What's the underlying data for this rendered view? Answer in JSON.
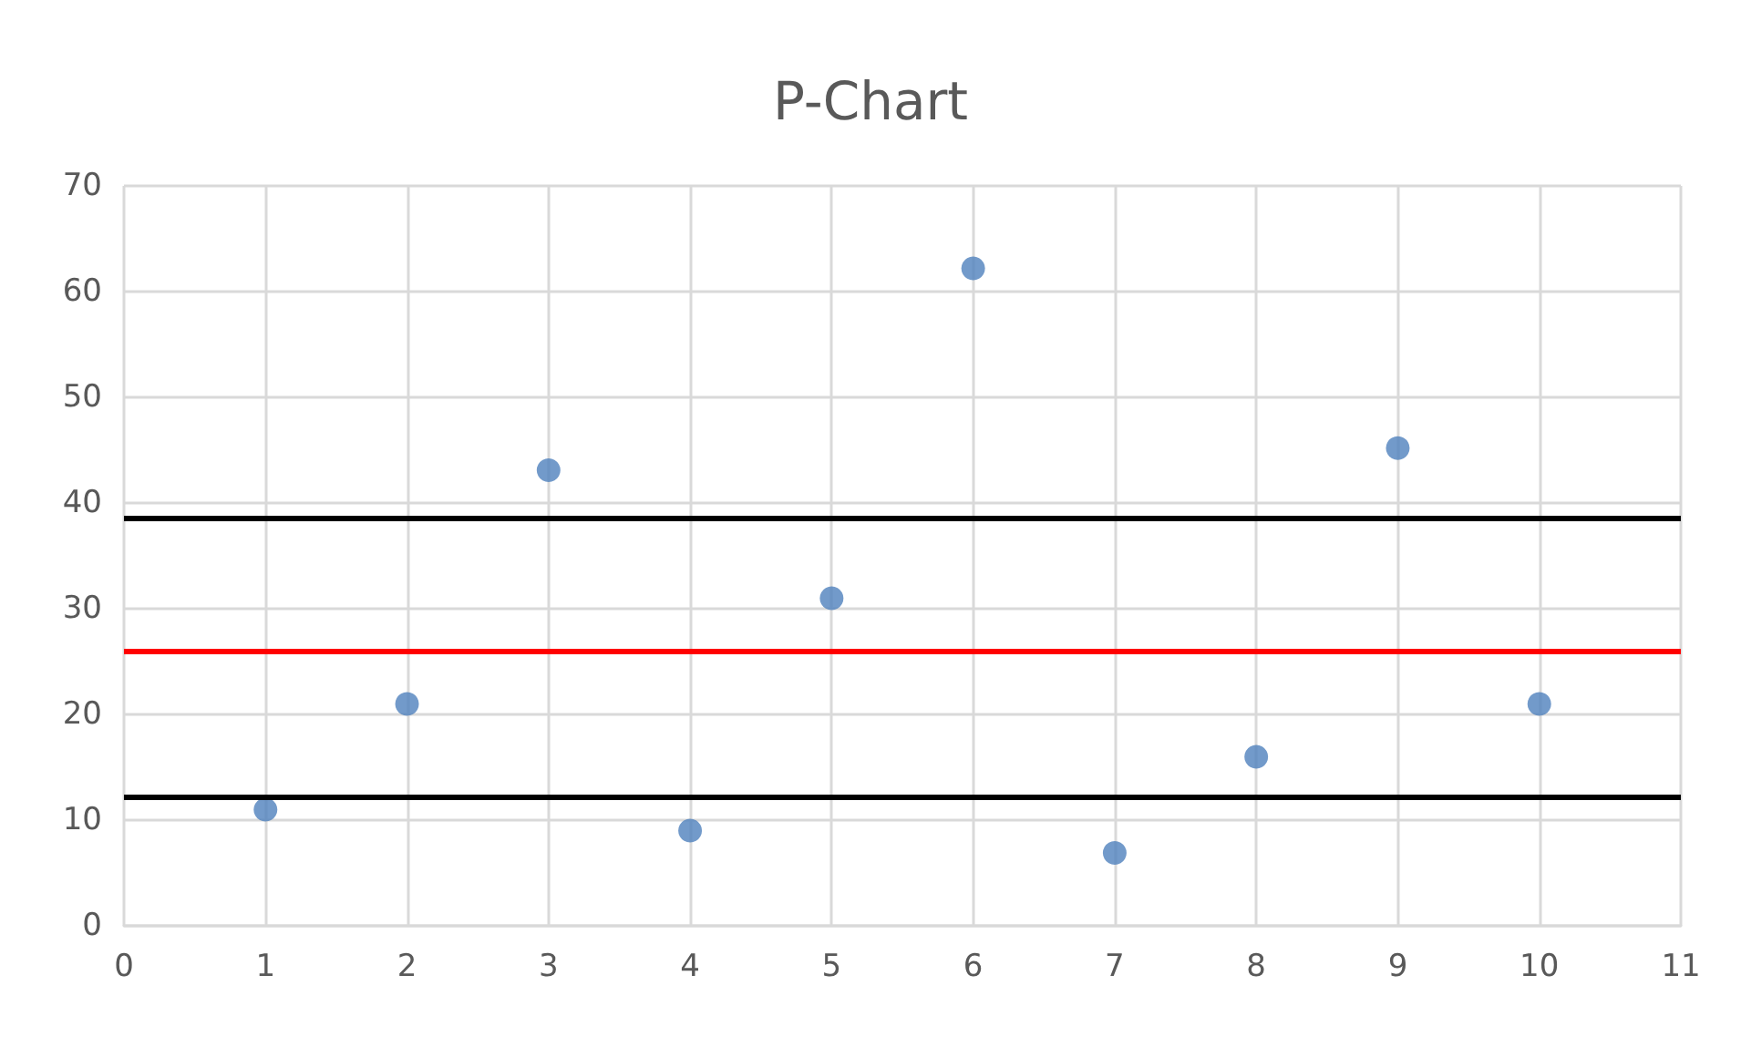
{
  "chart_data": {
    "type": "scatter",
    "title": "P-Chart",
    "x": [
      1,
      2,
      3,
      4,
      5,
      6,
      7,
      8,
      9,
      10
    ],
    "series": [
      {
        "color": "#4f81bd",
        "values": [
          11,
          21,
          43.1,
          9,
          31,
          62.2,
          6.9,
          16,
          45.2,
          21
        ]
      }
    ],
    "xlim": [
      0,
      11
    ],
    "xticks": [
      0,
      1,
      2,
      3,
      4,
      5,
      6,
      7,
      8,
      9,
      10,
      11
    ],
    "ylim": [
      0,
      70
    ],
    "yticks": [
      0,
      10,
      20,
      30,
      40,
      50,
      60,
      70
    ],
    "grid": true,
    "marker": "circle",
    "ref_lines": [
      {
        "axis": "y",
        "value": 38.6,
        "color": "#000000"
      },
      {
        "axis": "y",
        "value": 26,
        "color": "#ff0000"
      },
      {
        "axis": "y",
        "value": 12.2,
        "color": "#000000"
      }
    ]
  }
}
